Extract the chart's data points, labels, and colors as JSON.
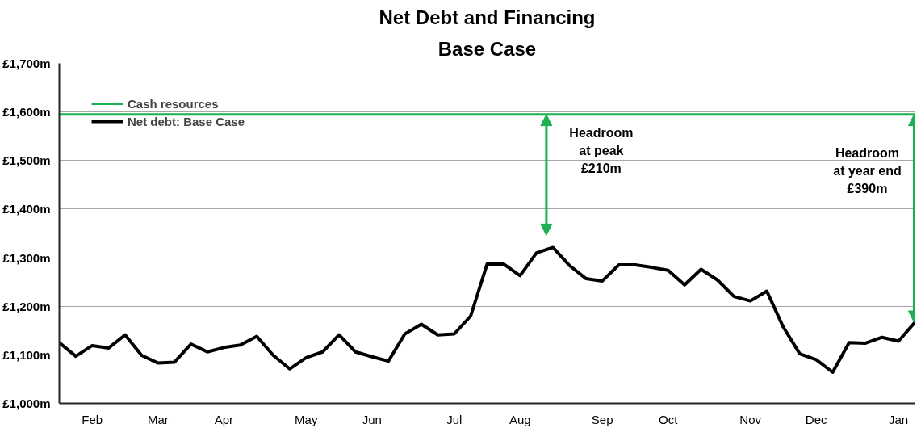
{
  "chart_data": {
    "type": "line",
    "title": "Net Debt and Financing",
    "subtitle": "Base Case",
    "categories": [
      null,
      null,
      "Feb",
      null,
      null,
      null,
      "Mar",
      null,
      null,
      null,
      "Apr",
      null,
      null,
      null,
      null,
      "May",
      null,
      null,
      null,
      "Jun",
      null,
      null,
      null,
      null,
      "Jul",
      null,
      null,
      null,
      "Aug",
      null,
      null,
      null,
      null,
      "Sep",
      null,
      null,
      null,
      "Oct",
      null,
      null,
      null,
      null,
      "Nov",
      null,
      null,
      null,
      "Dec",
      null,
      null,
      null,
      null,
      "Jan",
      null
    ],
    "series": [
      {
        "name": "Cash resources",
        "color": "#1db052",
        "values": [
          1595,
          1595,
          1595,
          1595,
          1595,
          1595,
          1595,
          1595,
          1595,
          1595,
          1595,
          1595,
          1595,
          1595,
          1595,
          1595,
          1595,
          1595,
          1595,
          1595,
          1595,
          1595,
          1595,
          1595,
          1595,
          1595,
          1595,
          1595,
          1595,
          1595,
          1595,
          1595,
          1595,
          1595,
          1595,
          1595,
          1595,
          1595,
          1595,
          1595,
          1595,
          1595,
          1595,
          1595,
          1595,
          1595,
          1595,
          1595,
          1595,
          1595,
          1595,
          1595,
          1595
        ]
      },
      {
        "name": "Net debt: Base Case",
        "color": "#000000",
        "values": [
          1125,
          1097,
          1119,
          1114,
          1141,
          1099,
          1083,
          1085,
          1122,
          1106,
          1115,
          1120,
          1138,
          1099,
          1071,
          1094,
          1106,
          1141,
          1106,
          1096,
          1087,
          1143,
          1163,
          1141,
          1143,
          1180,
          1287,
          1287,
          1263,
          1310,
          1321,
          1284,
          1257,
          1252,
          1285,
          1285,
          1280,
          1274,
          1244,
          1276,
          1254,
          1220,
          1211,
          1231,
          1157,
          1102,
          1090,
          1064,
          1125,
          1124,
          1136,
          1128,
          1167
        ]
      }
    ],
    "ylim": [
      1000,
      1700
    ],
    "yticks": [
      {
        "value": 1000,
        "label": "£1,000m"
      },
      {
        "value": 1100,
        "label": "£1,100m"
      },
      {
        "value": 1200,
        "label": "£1,200m"
      },
      {
        "value": 1300,
        "label": "£1,300m"
      },
      {
        "value": 1400,
        "label": "£1,400m"
      },
      {
        "value": 1500,
        "label": "£1,500m"
      },
      {
        "value": 1600,
        "label": "£1,600m"
      },
      {
        "value": 1700,
        "label": "£1,700m"
      }
    ],
    "annotations": [
      "Headroom\nat peak\n£210m",
      "Headroom\nat year end\n£390m"
    ],
    "grid": "y",
    "legend": "top left",
    "marker": "none",
    "line_style": "solid"
  }
}
